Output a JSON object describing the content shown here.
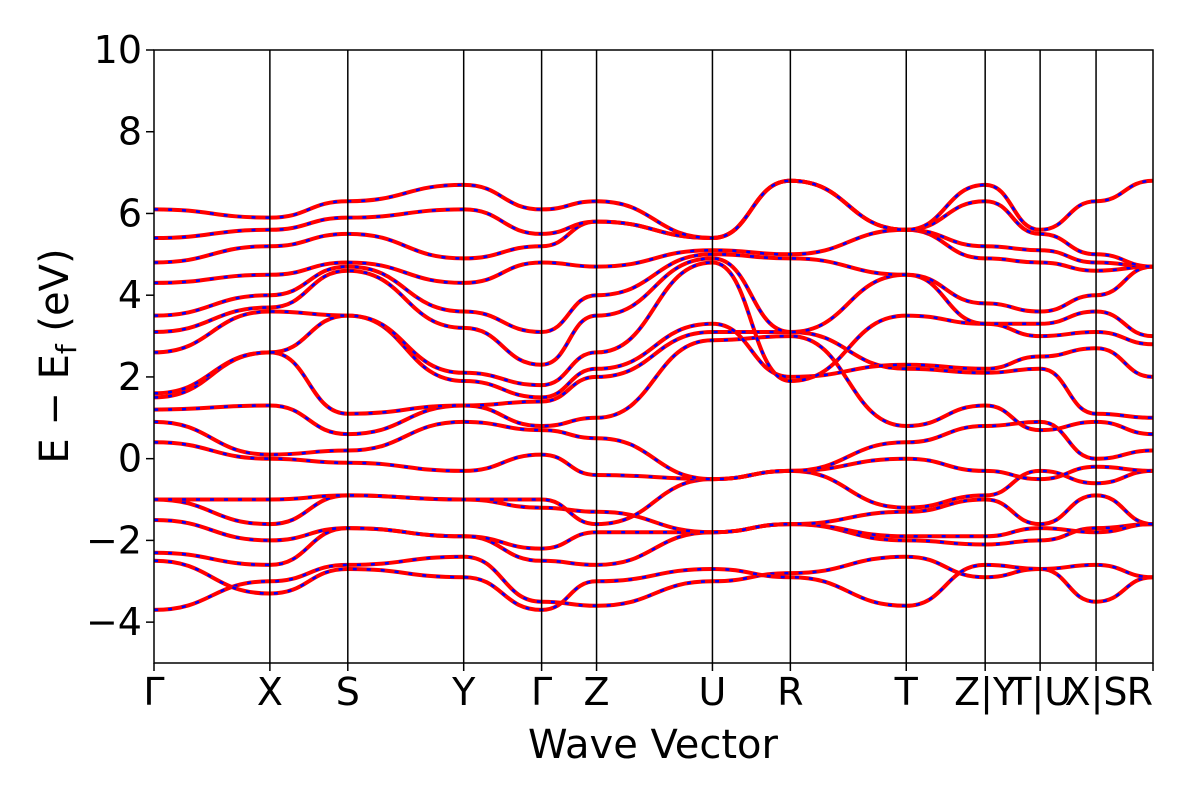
{
  "chart_data": {
    "type": "line",
    "title": "",
    "xlabel": "Wave Vector",
    "ylabel_main": "E − E",
    "ylabel_sub": "f",
    "ylabel_unit": " (eV)",
    "ylim": [
      -5,
      10
    ],
    "yticks": [
      -4,
      -2,
      0,
      2,
      4,
      6,
      8,
      10
    ],
    "ytick_labels": [
      "−4",
      "−2",
      "0",
      "2",
      "4",
      "6",
      "8",
      "10"
    ],
    "xlim": [
      0,
      1
    ],
    "kpoints": [
      {
        "label": "Γ",
        "x": 0.0
      },
      {
        "label": "X",
        "x": 0.116
      },
      {
        "label": "S",
        "x": 0.194
      },
      {
        "label": "Y",
        "x": 0.31
      },
      {
        "label": "Γ",
        "x": 0.388
      },
      {
        "label": "Z",
        "x": 0.443
      },
      {
        "label": "U",
        "x": 0.559
      },
      {
        "label": "R",
        "x": 0.637
      },
      {
        "label": "T",
        "x": 0.753
      },
      {
        "label": "Z|Y",
        "x": 0.832
      },
      {
        "label": "T|U",
        "x": 0.887
      },
      {
        "label": "X|S",
        "x": 0.943
      },
      {
        "label": "R",
        "x": 1.0
      }
    ],
    "series_styles": [
      {
        "color": "#ff0000",
        "dash": "solid"
      },
      {
        "color": "#0000ff",
        "dash": "dashed"
      }
    ],
    "bands": [
      [
        -3.7,
        -3.0,
        -2.6,
        -2.4,
        -3.5,
        -3.6,
        -3.0,
        -2.8,
        -2.4,
        -2.9,
        -2.7,
        -3.5,
        -2.9
      ],
      [
        -2.5,
        -3.3,
        -2.7,
        -2.9,
        -3.7,
        -3.0,
        -2.7,
        -2.9,
        -3.6,
        -2.6,
        -2.7,
        -2.6,
        -2.9
      ],
      [
        -2.3,
        -2.6,
        -1.7,
        -1.9,
        -2.5,
        -2.6,
        -1.8,
        -1.6,
        -2.0,
        -2.1,
        -2.0,
        -1.7,
        -1.6
      ],
      [
        -1.5,
        -2.0,
        -1.7,
        -1.9,
        -2.2,
        -1.8,
        -1.8,
        -1.6,
        -1.9,
        -1.9,
        -1.7,
        -1.8,
        -1.6
      ],
      [
        -1.0,
        -1.6,
        -0.9,
        -1.0,
        -1.2,
        -1.3,
        -1.8,
        -1.6,
        -1.3,
        -1.0,
        -1.6,
        -0.9,
        -1.6
      ],
      [
        -1.0,
        -1.0,
        -0.9,
        -1.0,
        -1.0,
        -1.6,
        -0.5,
        -0.3,
        -1.2,
        -0.9,
        -0.3,
        -0.6,
        -0.3
      ],
      [
        0.4,
        0.0,
        -0.1,
        -0.3,
        0.1,
        -0.4,
        -0.5,
        -0.3,
        0.0,
        -0.3,
        -0.5,
        -0.2,
        -0.3
      ],
      [
        0.9,
        0.1,
        0.2,
        0.9,
        0.7,
        0.5,
        -0.5,
        -0.3,
        0.4,
        0.8,
        0.9,
        0.0,
        0.2
      ],
      [
        1.2,
        1.3,
        0.6,
        1.3,
        0.8,
        1.0,
        2.9,
        3.0,
        0.8,
        1.3,
        0.7,
        0.9,
        0.6
      ],
      [
        1.5,
        2.6,
        1.1,
        1.3,
        1.4,
        2.0,
        3.1,
        3.1,
        2.2,
        2.1,
        2.2,
        1.1,
        1.0
      ],
      [
        1.6,
        2.6,
        3.5,
        1.9,
        1.5,
        2.2,
        3.3,
        2.0,
        2.3,
        2.2,
        2.5,
        2.7,
        2.0
      ],
      [
        2.6,
        3.6,
        3.5,
        2.1,
        1.8,
        2.6,
        4.8,
        1.9,
        3.5,
        3.3,
        3.0,
        3.1,
        2.8
      ],
      [
        3.1,
        3.7,
        4.6,
        3.2,
        2.3,
        3.5,
        4.9,
        3.1,
        4.5,
        3.3,
        3.3,
        3.6,
        3.0
      ],
      [
        3.5,
        4.0,
        4.7,
        3.6,
        3.1,
        4.0,
        5.0,
        4.9,
        4.5,
        3.8,
        3.6,
        4.0,
        4.7
      ],
      [
        4.3,
        4.5,
        4.8,
        4.3,
        4.8,
        4.7,
        5.1,
        5.0,
        5.6,
        4.9,
        4.8,
        4.6,
        4.7
      ],
      [
        4.8,
        5.2,
        5.5,
        4.9,
        5.2,
        5.8,
        5.4,
        6.8,
        5.6,
        5.2,
        5.1,
        4.8,
        4.7
      ],
      [
        5.4,
        5.6,
        5.9,
        6.1,
        5.5,
        5.8,
        5.4,
        6.8,
        5.6,
        6.3,
        5.5,
        5.0,
        4.7
      ],
      [
        6.1,
        5.9,
        6.3,
        6.7,
        6.1,
        6.3,
        5.4,
        6.8,
        5.6,
        6.7,
        5.6,
        6.3,
        6.8
      ]
    ]
  }
}
